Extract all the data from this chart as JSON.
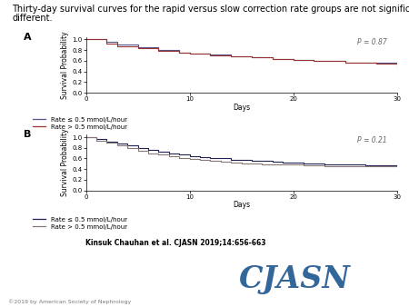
{
  "title_line1": "Thirty-day survival curves for the rapid versus slow correction rate groups are not significantly",
  "title_line2": "different.",
  "title_fontsize": 7,
  "panel_A": {
    "label": "A",
    "p_value": "P = 0.87",
    "slow_x": [
      0,
      2,
      3,
      5,
      7,
      9,
      10,
      12,
      14,
      16,
      18,
      20,
      22,
      25,
      30
    ],
    "slow_y": [
      1.0,
      0.95,
      0.9,
      0.85,
      0.8,
      0.76,
      0.74,
      0.71,
      0.68,
      0.66,
      0.63,
      0.61,
      0.59,
      0.57,
      0.57
    ],
    "fast_x": [
      0,
      2,
      3,
      5,
      7,
      9,
      10,
      12,
      14,
      16,
      18,
      20,
      22,
      25,
      28,
      30
    ],
    "fast_y": [
      1.0,
      0.93,
      0.88,
      0.83,
      0.79,
      0.75,
      0.73,
      0.7,
      0.68,
      0.66,
      0.63,
      0.61,
      0.59,
      0.56,
      0.54,
      0.45
    ],
    "slow_color": "#555588",
    "fast_color": "#993333",
    "legend1": "Rate ≤ 0.5 mmol/L/hour",
    "legend2": "Rate > 0.5 mmol/L/hour"
  },
  "panel_B": {
    "label": "B",
    "p_value": "P = 0.21",
    "slow_x": [
      0,
      1,
      2,
      3,
      4,
      5,
      6,
      7,
      8,
      9,
      10,
      11,
      12,
      13,
      14,
      15,
      16,
      17,
      18,
      19,
      20,
      21,
      22,
      23,
      24,
      25,
      26,
      27,
      28,
      29,
      30
    ],
    "slow_y": [
      1.0,
      0.96,
      0.92,
      0.88,
      0.84,
      0.8,
      0.76,
      0.73,
      0.7,
      0.68,
      0.65,
      0.63,
      0.61,
      0.6,
      0.58,
      0.57,
      0.56,
      0.55,
      0.54,
      0.53,
      0.52,
      0.51,
      0.5,
      0.49,
      0.49,
      0.48,
      0.48,
      0.47,
      0.47,
      0.47,
      0.47
    ],
    "fast_x": [
      0,
      1,
      2,
      3,
      4,
      5,
      6,
      7,
      8,
      9,
      10,
      11,
      12,
      13,
      14,
      15,
      16,
      17,
      18,
      19,
      20,
      21,
      22,
      23,
      24,
      25,
      26,
      27,
      28,
      29,
      30
    ],
    "fast_y": [
      1.0,
      0.94,
      0.89,
      0.84,
      0.79,
      0.74,
      0.7,
      0.67,
      0.64,
      0.61,
      0.59,
      0.57,
      0.55,
      0.54,
      0.52,
      0.51,
      0.5,
      0.49,
      0.49,
      0.48,
      0.48,
      0.47,
      0.47,
      0.46,
      0.46,
      0.46,
      0.46,
      0.46,
      0.46,
      0.46,
      0.46
    ],
    "slow_color": "#222255",
    "fast_color": "#887777",
    "legend1": "Rate ≤ 0.5 mmol/L/hour",
    "legend2": "Rate > 0.5 mmol/L/hour"
  },
  "xlabel": "Days",
  "ylabel": "Survival Probability",
  "xlim": [
    0,
    30
  ],
  "ylim": [
    0,
    1.05
  ],
  "xticks": [
    0,
    10,
    20,
    30
  ],
  "yticks": [
    0,
    0.2,
    0.4,
    0.6,
    0.8,
    1.0
  ],
  "axis_fontsize": 5.5,
  "tick_fontsize": 5,
  "legend_fontsize": 5,
  "citation": "Kinsuk Chauhan et al. CJASN 2019;14:656-663",
  "journal": "CJASN",
  "copyright": "©2019 by American Society of Nephrology"
}
